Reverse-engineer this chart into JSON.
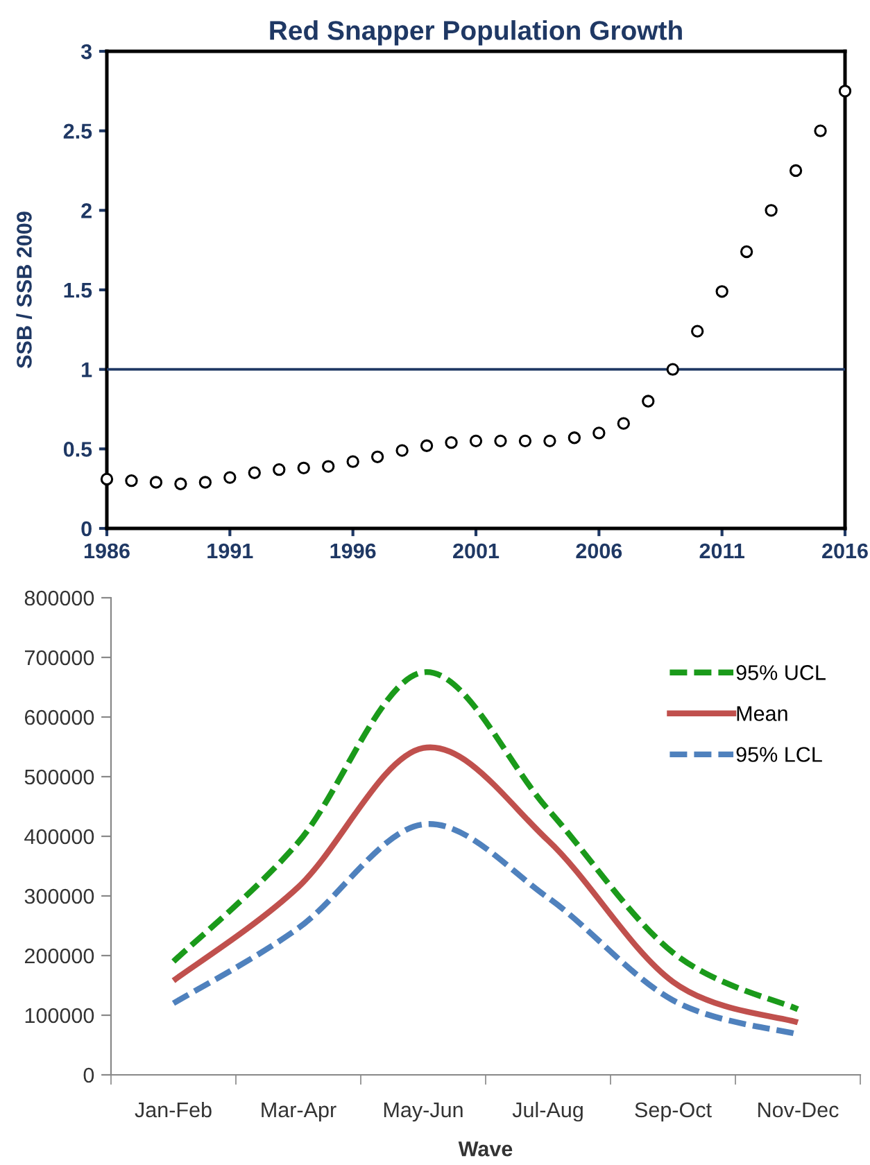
{
  "chart_data": [
    {
      "type": "scatter",
      "title": "Red Snapper Population Growth",
      "ylabel": "SSB / SSB 2009",
      "x": [
        1986,
        1987,
        1988,
        1989,
        1990,
        1991,
        1992,
        1993,
        1994,
        1995,
        1996,
        1997,
        1998,
        1999,
        2000,
        2001,
        2002,
        2003,
        2004,
        2005,
        2006,
        2007,
        2008,
        2009,
        2010,
        2011,
        2012,
        2013,
        2014,
        2015,
        2016
      ],
      "series": [
        {
          "color": "#000000",
          "values": [
            0.31,
            0.3,
            0.29,
            0.28,
            0.29,
            0.32,
            0.35,
            0.37,
            0.38,
            0.39,
            0.42,
            0.45,
            0.49,
            0.52,
            0.54,
            0.55,
            0.55,
            0.55,
            0.55,
            0.57,
            0.6,
            0.66,
            0.8,
            1.0,
            1.24,
            1.49,
            1.74,
            2.0,
            2.25,
            2.5,
            2.75
          ]
        }
      ],
      "xlim": [
        1986,
        2016
      ],
      "xticks": [
        1986,
        1991,
        1996,
        2001,
        2006,
        2011,
        2016
      ],
      "ylim": [
        0,
        3
      ],
      "yticks": [
        0,
        0.5,
        1,
        1.5,
        2,
        2.5,
        3
      ],
      "ref_lines": [
        {
          "axis": "y",
          "value": 1,
          "color": "#1f3864"
        }
      ],
      "marker": "circle",
      "grid": false
    },
    {
      "type": "line",
      "xlabel": "Wave",
      "categories": [
        "Jan-Feb",
        "Mar-Apr",
        "May-Jun",
        "Jul-Aug",
        "Sep-Oct",
        "Nov-Dec"
      ],
      "series": [
        {
          "name": "95% UCL",
          "color": "#1a9a1a",
          "line_style": "dashed",
          "values": [
            190000,
            390000,
            675000,
            445000,
            205000,
            110000
          ]
        },
        {
          "name": "Mean",
          "color": "#c0504d",
          "line_style": "solid",
          "values": [
            158000,
            315000,
            548000,
            393000,
            156000,
            88000
          ]
        },
        {
          "name": "95% LCL",
          "color": "#4f81bd",
          "line_style": "dashed",
          "values": [
            120000,
            246000,
            420000,
            297000,
            125000,
            68000
          ]
        }
      ],
      "ylim": [
        0,
        800000
      ],
      "yticks": [
        0,
        100000,
        200000,
        300000,
        400000,
        500000,
        600000,
        700000,
        800000
      ],
      "grid": false,
      "legend": "top right"
    }
  ]
}
